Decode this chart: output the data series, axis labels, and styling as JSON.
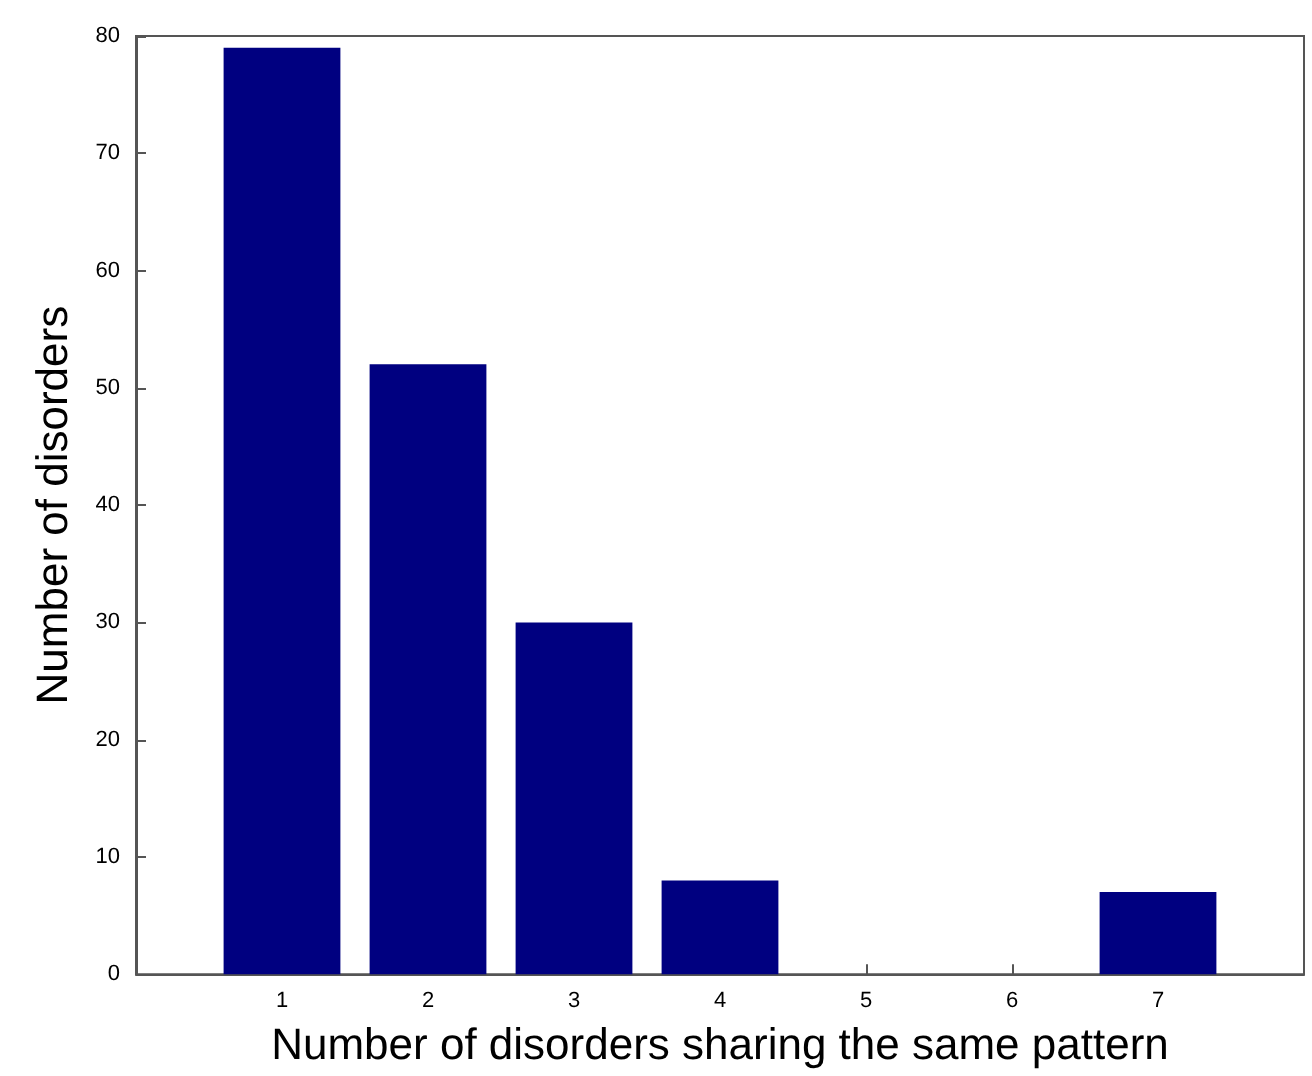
{
  "chart_data": {
    "type": "bar",
    "xlabel": "Number of disorders sharing the same pattern",
    "ylabel": "Number of disorders",
    "x": [
      1,
      2,
      3,
      4,
      5,
      6,
      7
    ],
    "values": [
      79,
      52,
      30,
      8,
      0,
      0,
      7
    ],
    "color": "#000080",
    "xlim": [
      0,
      8
    ],
    "xticks": [
      1,
      2,
      3,
      4,
      5,
      6,
      7
    ],
    "ylim": [
      0,
      80
    ],
    "yticks": [
      0,
      10,
      20,
      30,
      40,
      50,
      60,
      70,
      80
    ],
    "grid": false
  }
}
